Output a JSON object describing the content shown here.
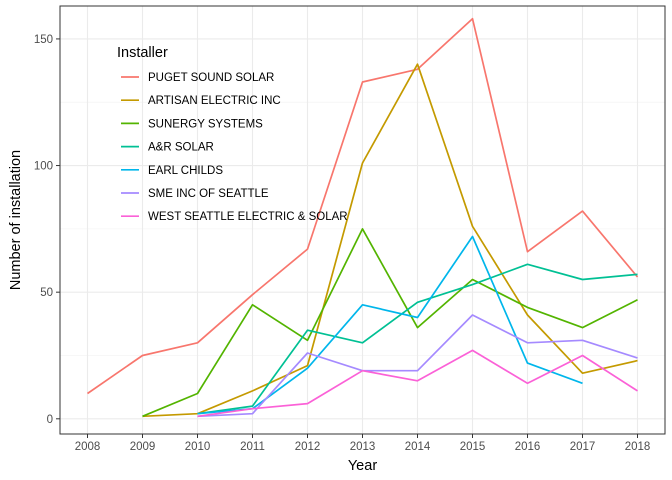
{
  "chart_data": {
    "type": "line",
    "title": "",
    "xlabel": "Year",
    "ylabel": "Number of installation",
    "xlim": [
      2007.5,
      2018.5
    ],
    "ylim": [
      -6,
      163
    ],
    "x_ticks": [
      "2008",
      "2009",
      "2010",
      "2011",
      "2012",
      "2013",
      "2014",
      "2015",
      "2016",
      "2017",
      "2018"
    ],
    "y_ticks": [
      "0",
      "50",
      "100",
      "150"
    ],
    "grid": true,
    "legend": {
      "title": "Installer",
      "placement": "top-left inside"
    },
    "series": [
      {
        "name": "PUGET SOUND SOLAR",
        "color": "#F8766D",
        "x": [
          2008,
          2009,
          2010,
          2011,
          2012,
          2013,
          2014,
          2015,
          2016,
          2017,
          2018
        ],
        "y": [
          10,
          25,
          30,
          49,
          67,
          133,
          138,
          158,
          66,
          82,
          56
        ]
      },
      {
        "name": "ARTISAN ELECTRIC INC",
        "color": "#C49A00",
        "x": [
          2009,
          2010,
          2011,
          2012,
          2013,
          2014,
          2015,
          2016,
          2017,
          2018
        ],
        "y": [
          1,
          2,
          11,
          21,
          101,
          140,
          76,
          41,
          18,
          23
        ]
      },
      {
        "name": "SUNERGY SYSTEMS",
        "color": "#53B400",
        "x": [
          2009,
          2010,
          2011,
          2012,
          2013,
          2014,
          2015,
          2016,
          2017,
          2018
        ],
        "y": [
          1,
          10,
          45,
          31,
          75,
          36,
          55,
          44,
          36,
          47
        ]
      },
      {
        "name": "A&R SOLAR",
        "color": "#00C094",
        "x": [
          2010,
          2011,
          2012,
          2013,
          2014,
          2015,
          2016,
          2017,
          2018
        ],
        "y": [
          2,
          5,
          35,
          30,
          46,
          53,
          61,
          55,
          57
        ]
      },
      {
        "name": "EARL CHILDS",
        "color": "#00B6EB",
        "x": [
          2010,
          2011,
          2012,
          2013,
          2014,
          2015,
          2016,
          2017
        ],
        "y": [
          2,
          4,
          20,
          45,
          40,
          72,
          22,
          14
        ]
      },
      {
        "name": "SME INC OF SEATTLE",
        "color": "#A58AFF",
        "x": [
          2010,
          2011,
          2012,
          2013,
          2014,
          2015,
          2016,
          2017,
          2018
        ],
        "y": [
          1,
          2,
          26,
          19,
          19,
          41,
          30,
          31,
          24
        ]
      },
      {
        "name": "WEST SEATTLE ELECTRIC & SOLAR",
        "color": "#FB61D7",
        "x": [
          2010,
          2011,
          2012,
          2013,
          2014,
          2015,
          2016,
          2017,
          2018
        ],
        "y": [
          1,
          4,
          6,
          19,
          15,
          27,
          14,
          25,
          11
        ]
      }
    ]
  }
}
